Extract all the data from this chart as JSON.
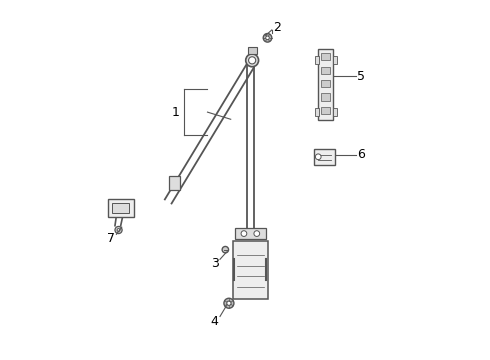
{
  "background_color": "#ffffff",
  "line_color": "#555555",
  "text_color": "#000000",
  "fig_width": 4.9,
  "fig_height": 3.6,
  "dpi": 100
}
